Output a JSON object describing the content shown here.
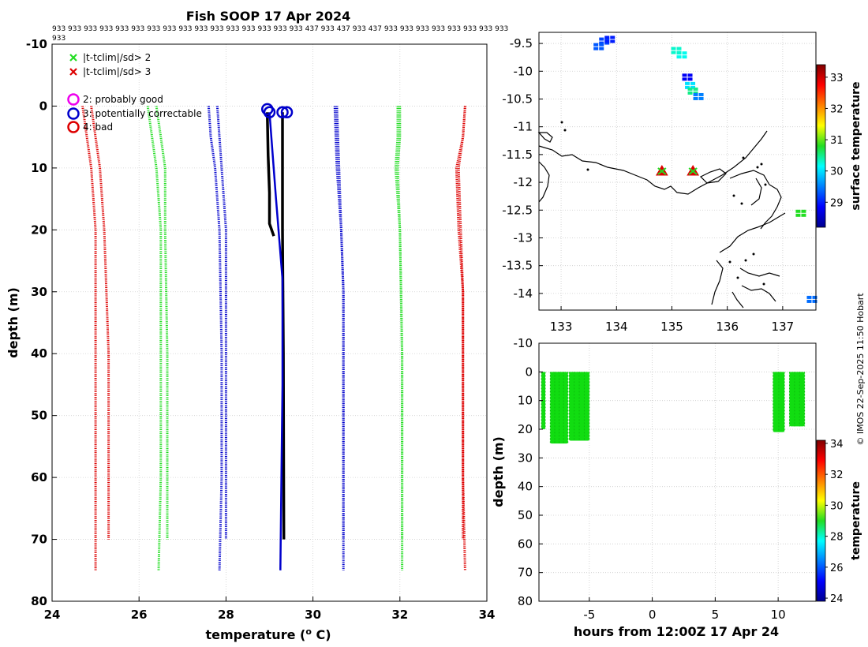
{
  "colors": {
    "red": "#dd0000",
    "green": "#22dd22",
    "blue": "#0000cc",
    "black": "#000000",
    "magenta": "#ee00ee"
  },
  "chart_data": [
    {
      "id": "profiles",
      "type": "line",
      "title": "Fish SOOP 17 Apr 2024",
      "id_labels_line1": "933 933 933 933 933 933 933 933 933 933 933 933 933 933 933 933 437 933 437 933 437 933 933 933 933 933 933 933 933",
      "id_labels_line2": "933",
      "xlabel": "temperature (",
      "xlabel_sup": "o",
      "xlabel_tail": " C)",
      "ylabel": "depth (m)",
      "xlim": [
        24,
        34
      ],
      "ylim": [
        -10,
        80
      ],
      "xticks": [
        24,
        26,
        28,
        30,
        32,
        34
      ],
      "yticks": [
        -10,
        0,
        10,
        20,
        30,
        40,
        50,
        60,
        70,
        80
      ],
      "legend": [
        {
          "marker": "x",
          "color": "#22dd22",
          "label": "|t-tclim|/sd> 2"
        },
        {
          "marker": "x",
          "color": "#dd0000",
          "label": "|t-tclim|/sd> 3"
        },
        {
          "marker": "o",
          "color": "#ee00ee",
          "label": "2: probably good"
        },
        {
          "marker": "o",
          "color": "#0000cc",
          "label": "3: potentially correctable"
        },
        {
          "marker": "o",
          "color": "#dd0000",
          "label": "4: bad"
        }
      ],
      "series": [
        {
          "name": "climatology -3sd",
          "color": "#dd0000",
          "points": [
            [
              24.7,
              0
            ],
            [
              24.8,
              5
            ],
            [
              24.9,
              10
            ],
            [
              25.0,
              20
            ],
            [
              25.0,
              40
            ],
            [
              25.0,
              60
            ],
            [
              25.0,
              75
            ]
          ]
        },
        {
          "name": "climatology -3sd (short)",
          "color": "#dd0000",
          "points": [
            [
              24.9,
              0
            ],
            [
              25.0,
              5
            ],
            [
              25.1,
              10
            ],
            [
              25.2,
              20
            ],
            [
              25.3,
              40
            ],
            [
              25.3,
              60
            ],
            [
              25.3,
              70
            ]
          ]
        },
        {
          "name": "climatology -2sd",
          "color": "#22dd22",
          "points": [
            [
              26.2,
              0
            ],
            [
              26.3,
              5
            ],
            [
              26.4,
              10
            ],
            [
              26.5,
              20
            ],
            [
              26.5,
              40
            ],
            [
              26.5,
              60
            ],
            [
              26.45,
              75
            ]
          ]
        },
        {
          "name": "climatology -2sd (short)",
          "color": "#22dd22",
          "points": [
            [
              26.4,
              0
            ],
            [
              26.5,
              5
            ],
            [
              26.6,
              10
            ],
            [
              26.6,
              20
            ],
            [
              26.65,
              40
            ],
            [
              26.65,
              60
            ],
            [
              26.65,
              70
            ]
          ]
        },
        {
          "name": "climatology mean",
          "color": "#0000cc",
          "points": [
            [
              27.6,
              0
            ],
            [
              27.65,
              5
            ],
            [
              27.75,
              10
            ],
            [
              27.85,
              20
            ],
            [
              27.9,
              40
            ],
            [
              27.9,
              60
            ],
            [
              27.85,
              75
            ]
          ]
        },
        {
          "name": "climatology mean (short)",
          "color": "#0000cc",
          "points": [
            [
              27.8,
              0
            ],
            [
              27.85,
              5
            ],
            [
              27.9,
              10
            ],
            [
              28.0,
              20
            ],
            [
              28.0,
              40
            ],
            [
              28.0,
              60
            ],
            [
              28.0,
              70
            ]
          ]
        },
        {
          "name": "climatology +1sd",
          "color": "#0000cc",
          "points": [
            [
              30.5,
              0
            ],
            [
              30.55,
              10
            ],
            [
              30.65,
              20
            ],
            [
              30.7,
              30
            ],
            [
              30.7,
              60
            ],
            [
              30.7,
              75
            ]
          ]
        },
        {
          "name": "climatology +1sd (short)",
          "color": "#0000cc",
          "points": [
            [
              30.55,
              0
            ],
            [
              30.6,
              10
            ],
            [
              30.65,
              20
            ],
            [
              30.7,
              30
            ],
            [
              30.7,
              60
            ],
            [
              30.7,
              70
            ]
          ]
        },
        {
          "name": "climatology +2sd",
          "color": "#22dd22",
          "points": [
            [
              31.95,
              0
            ],
            [
              31.95,
              5
            ],
            [
              31.9,
              10
            ],
            [
              32.0,
              20
            ],
            [
              32.05,
              40
            ],
            [
              32.05,
              60
            ],
            [
              32.05,
              75
            ]
          ]
        },
        {
          "name": "climatology +2sd (short)",
          "color": "#22dd22",
          "points": [
            [
              32.0,
              0
            ],
            [
              32.0,
              5
            ],
            [
              31.95,
              10
            ],
            [
              32.0,
              20
            ],
            [
              32.05,
              40
            ],
            [
              32.05,
              60
            ],
            [
              32.05,
              70
            ]
          ]
        },
        {
          "name": "climatology +3sd",
          "color": "#dd0000",
          "points": [
            [
              33.5,
              0
            ],
            [
              33.45,
              5
            ],
            [
              33.3,
              10
            ],
            [
              33.35,
              20
            ],
            [
              33.45,
              30
            ],
            [
              33.45,
              60
            ],
            [
              33.5,
              75
            ]
          ]
        },
        {
          "name": "climatology +3sd (short)",
          "color": "#dd0000",
          "points": [
            [
              33.5,
              0
            ],
            [
              33.45,
              5
            ],
            [
              33.35,
              10
            ],
            [
              33.4,
              20
            ],
            [
              33.45,
              30
            ],
            [
              33.45,
              60
            ],
            [
              33.45,
              70
            ]
          ]
        },
        {
          "name": "observed profiles",
          "color": "#000000",
          "points": [
            [
              28.95,
              1
            ],
            [
              28.97,
              8
            ],
            [
              29.0,
              14
            ],
            [
              29.0,
              19
            ],
            [
              29.1,
              21
            ]
          ]
        },
        {
          "name": "observed profiles 2",
          "color": "#000000",
          "points": [
            [
              29.3,
              1
            ],
            [
              29.3,
              10
            ],
            [
              29.3,
              20
            ],
            [
              29.32,
              40
            ],
            [
              29.33,
              70
            ]
          ]
        },
        {
          "name": "flagged profile",
          "color": "#0000cc",
          "points": [
            [
              29.0,
              1
            ],
            [
              29.15,
              15
            ],
            [
              29.3,
              28
            ],
            [
              29.3,
              45
            ],
            [
              29.25,
              75
            ]
          ]
        }
      ],
      "flags": [
        {
          "t": 28.95,
          "d": 0.5,
          "color": "#0000cc"
        },
        {
          "t": 29.0,
          "d": 1.0,
          "color": "#0000cc"
        },
        {
          "t": 29.3,
          "d": 1.0,
          "color": "#0000cc"
        },
        {
          "t": 29.4,
          "d": 1.0,
          "color": "#0000cc"
        }
      ]
    },
    {
      "id": "map",
      "type": "heatmap",
      "xticks": [
        133,
        134,
        135,
        136,
        137
      ],
      "yticks": [
        -9.5,
        -10,
        -10.5,
        -11,
        -11.5,
        -12,
        -12.5,
        -13,
        -13.5,
        -14
      ],
      "xlim": [
        132.6,
        137.6
      ],
      "ylim": [
        -14.3,
        -9.3
      ],
      "colorbar_label": "surface temperature",
      "colorbar_ticks": [
        29,
        30,
        31,
        32,
        33
      ],
      "colorbar_range": [
        28.2,
        33.4
      ],
      "sst_patches": [
        {
          "lon": 133.8,
          "lat": -9.45,
          "v": 29.2
        },
        {
          "lon": 133.9,
          "lat": -9.42,
          "v": 29.0
        },
        {
          "lon": 133.7,
          "lat": -9.55,
          "v": 29.3
        },
        {
          "lon": 135.2,
          "lat": -9.7,
          "v": 30.2
        },
        {
          "lon": 135.1,
          "lat": -9.62,
          "v": 30.3
        },
        {
          "lon": 135.3,
          "lat": -10.1,
          "v": 28.8
        },
        {
          "lon": 135.35,
          "lat": -10.25,
          "v": 30.0
        },
        {
          "lon": 135.4,
          "lat": -10.35,
          "v": 30.5
        },
        {
          "lon": 135.5,
          "lat": -10.45,
          "v": 29.5
        },
        {
          "lon": 137.55,
          "lat": -14.1,
          "v": 29.4
        },
        {
          "lon": 137.35,
          "lat": -12.55,
          "v": 30.8
        }
      ],
      "stations": [
        {
          "lon": 134.82,
          "lat": -11.8
        },
        {
          "lon": 135.38,
          "lat": -11.8
        }
      ]
    },
    {
      "id": "timeseries",
      "type": "scatter",
      "xlabel": "hours from 12:00Z 17 Apr 24",
      "ylabel": "depth (m)",
      "xlim": [
        -9,
        13
      ],
      "ylim": [
        -10,
        80
      ],
      "xticks": [
        -5,
        0,
        5,
        10
      ],
      "yticks": [
        -10,
        0,
        10,
        20,
        30,
        40,
        50,
        60,
        70,
        80
      ],
      "colorbar_label": "temperature",
      "colorbar_ticks": [
        24,
        26,
        28,
        30,
        32,
        34
      ],
      "colorbar_range": [
        23.8,
        34.2
      ],
      "marker_color": "#11dd11",
      "blocks": [
        {
          "t0": -8.8,
          "t1": -8.5,
          "d0": 0,
          "d1": 20
        },
        {
          "t0": -8.1,
          "t1": -6.7,
          "d0": 0,
          "d1": 25
        },
        {
          "t0": -6.6,
          "t1": -5.0,
          "d0": 0,
          "d1": 24
        },
        {
          "t0": 9.6,
          "t1": 10.5,
          "d0": 0,
          "d1": 21
        },
        {
          "t0": 10.9,
          "t1": 12.1,
          "d0": 0,
          "d1": 19
        }
      ]
    }
  ],
  "credit": "© IMOS 22-Sep-2025 11:50 Hobart"
}
